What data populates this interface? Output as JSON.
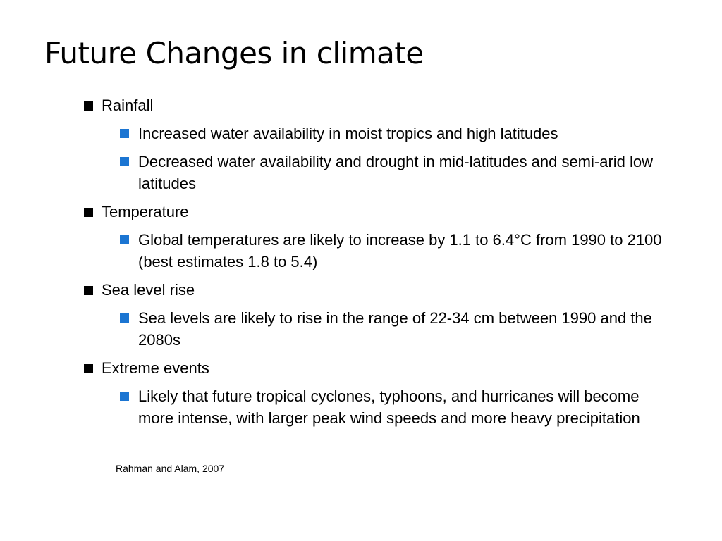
{
  "slide": {
    "title": "Future Changes in climate",
    "accent_color": "#1b75d2",
    "sections": [
      {
        "heading": "Rainfall",
        "points": [
          "Increased water availability in moist tropics and high latitudes",
          "Decreased water availability and drought in mid-latitudes and semi-arid low latitudes"
        ]
      },
      {
        "heading": "Temperature",
        "points": [
          "Global temperatures are likely to increase by 1.1 to 6.4°C from 1990 to 2100 (best estimates 1.8 to 5.4)"
        ]
      },
      {
        "heading": "Sea level rise",
        "points": [
          "Sea levels are likely to rise in the range of 22-34 cm between 1990 and the 2080s"
        ]
      },
      {
        "heading": "Extreme events",
        "points": [
          "Likely that future tropical cyclones, typhoons, and hurricanes will become more intense, with larger peak wind speeds and more heavy precipitation"
        ]
      }
    ],
    "citation": "Rahman and Alam, 2007"
  }
}
